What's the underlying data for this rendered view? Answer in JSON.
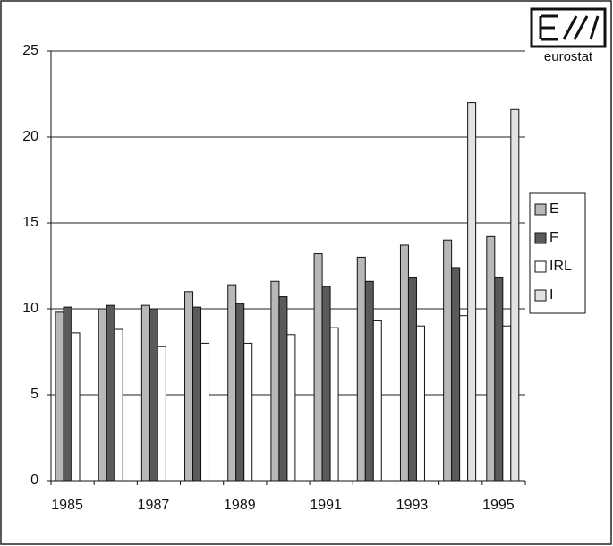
{
  "chart_data": {
    "type": "bar",
    "logo_text": "eurostat",
    "categories": [
      "1985",
      null,
      "1987",
      null,
      "1989",
      null,
      "1991",
      null,
      "1993",
      null,
      "1995"
    ],
    "series": [
      {
        "name": "E",
        "color": "#b8b8b8",
        "values": [
          9.8,
          10.0,
          10.2,
          11.0,
          11.4,
          11.6,
          13.2,
          13.0,
          13.7,
          14.0,
          14.2
        ]
      },
      {
        "name": "F",
        "color": "#5a5a5a",
        "values": [
          10.1,
          10.2,
          10.0,
          10.1,
          10.3,
          10.7,
          11.3,
          11.6,
          11.8,
          12.4,
          11.8
        ]
      },
      {
        "name": "IRL",
        "color": "#ffffff",
        "values": [
          8.6,
          8.8,
          7.8,
          8.0,
          8.0,
          8.5,
          8.9,
          9.3,
          9.0,
          9.6,
          9.0
        ]
      },
      {
        "name": "I",
        "color": "#e2e2e2",
        "values": [
          null,
          null,
          null,
          null,
          null,
          null,
          null,
          null,
          null,
          22.0,
          21.6
        ]
      }
    ],
    "ylim": [
      0,
      25
    ],
    "yticks": [
      0,
      5,
      10,
      15,
      20,
      25
    ],
    "grid": true,
    "legend": "right"
  }
}
